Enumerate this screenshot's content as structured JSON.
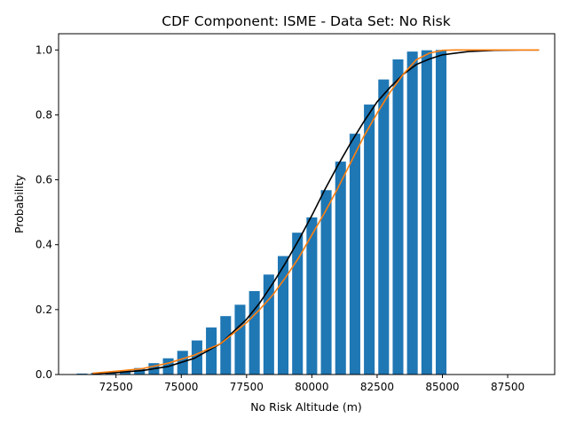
{
  "chart_data": {
    "type": "bar",
    "title": "CDF Component: ISME - Data Set: No Risk",
    "xlabel": "No Risk Altitude (m)",
    "ylabel": "Probability",
    "xlim": [
      70300,
      89300
    ],
    "ylim": [
      0,
      1.05
    ],
    "xticks": [
      72500,
      75000,
      77500,
      80000,
      82500,
      85000,
      87500
    ],
    "xtick_labels": [
      "72500",
      "75000",
      "77500",
      "80000",
      "82500",
      "85000",
      "87500"
    ],
    "yticks": [
      0.0,
      0.2,
      0.4,
      0.6,
      0.8,
      1.0
    ],
    "ytick_labels": [
      "0.0",
      "0.2",
      "0.4",
      "0.6",
      "0.8",
      "1.0"
    ],
    "grid": false,
    "colors": {
      "bars": "#1f77b4",
      "normal_cdf": "#000000",
      "fitted_cdf": "#ff7f0e"
    },
    "bars": {
      "bar_width": 410,
      "x": [
        71200,
        71750,
        72300,
        72850,
        73400,
        73950,
        74500,
        75050,
        75600,
        76150,
        76700,
        77250,
        77800,
        78350,
        78900,
        79450,
        80000,
        80550,
        81100,
        81650,
        82200,
        82750,
        83300,
        83850,
        84400,
        84950
      ],
      "values": [
        0.003,
        0.005,
        0.008,
        0.013,
        0.02,
        0.035,
        0.05,
        0.073,
        0.105,
        0.145,
        0.18,
        0.215,
        0.257,
        0.308,
        0.365,
        0.437,
        0.484,
        0.568,
        0.656,
        0.742,
        0.832,
        0.909,
        0.971,
        0.995,
        0.999,
        1.0
      ]
    },
    "series": [
      {
        "x": [
          71600,
          72500,
          73500,
          74500,
          75500,
          76500,
          77500,
          78000,
          78500,
          79000,
          79500,
          80000,
          80500,
          81000,
          81500,
          82000,
          82500,
          83000,
          83500,
          84000,
          84500,
          85000,
          86000,
          87000,
          88000,
          88700
        ],
        "values": [
          0.003,
          0.006,
          0.012,
          0.025,
          0.05,
          0.095,
          0.17,
          0.22,
          0.28,
          0.345,
          0.415,
          0.49,
          0.57,
          0.645,
          0.715,
          0.78,
          0.84,
          0.885,
          0.925,
          0.955,
          0.972,
          0.985,
          0.995,
          0.999,
          1.0,
          1.0
        ]
      },
      {
        "x": [
          71600,
          72500,
          73500,
          74500,
          75500,
          76500,
          77500,
          78000,
          78500,
          79000,
          79500,
          80000,
          80500,
          81000,
          81500,
          82000,
          82500,
          83000,
          83500,
          84000,
          84500,
          85000,
          85500,
          86000,
          87500,
          88700
        ],
        "values": [
          0.004,
          0.01,
          0.018,
          0.035,
          0.06,
          0.095,
          0.16,
          0.2,
          0.245,
          0.3,
          0.36,
          0.43,
          0.5,
          0.575,
          0.655,
          0.735,
          0.805,
          0.87,
          0.925,
          0.97,
          0.99,
          0.999,
          1.0,
          1.0,
          1.0,
          1.0
        ]
      }
    ]
  }
}
